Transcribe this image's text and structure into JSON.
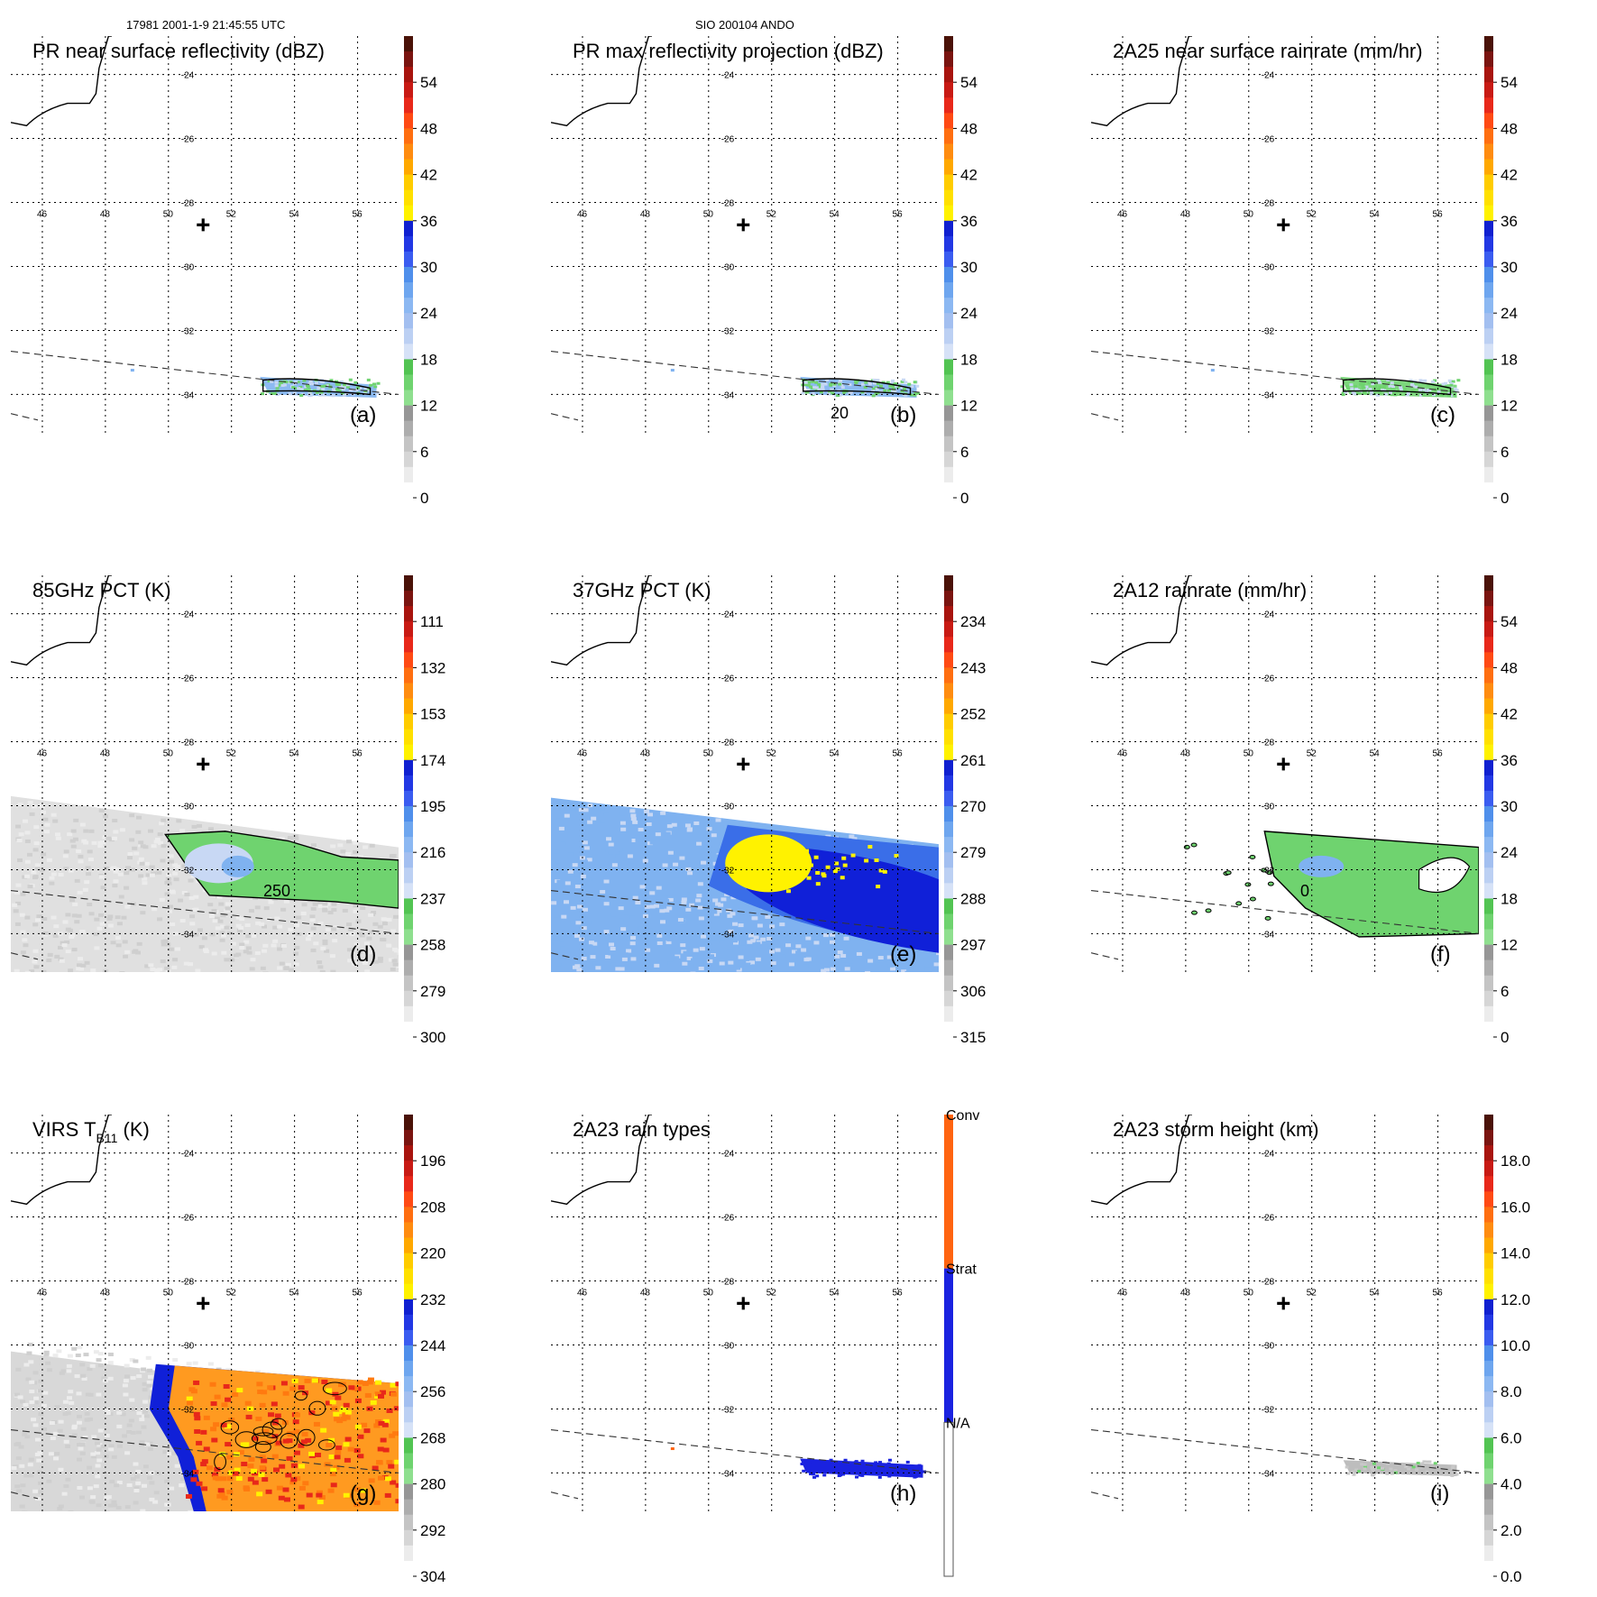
{
  "header": {
    "left": "17981 2001-1-9 21:45:55 UTC",
    "center": "SIO 200104 ANDO"
  },
  "map": {
    "lon_ticks": [
      "46",
      "48",
      "50",
      "52",
      "54",
      "56"
    ],
    "lat_ticks": [
      "-24",
      "-26",
      "-28",
      "-30",
      "-32",
      "-34"
    ],
    "center_marker": "plus-icon"
  },
  "colors": {
    "gray_light": "#f2f2f2",
    "gray_mid": "#bdbdbd",
    "gray_dark": "#8f8f8f",
    "green": "#6fd36f",
    "pale_blue": "#c8d8f4",
    "light_blue": "#7fb2f0",
    "blue": "#3a6ee8",
    "dark_blue": "#1020d8",
    "yellow": "#fff200",
    "orange": "#ff9a20",
    "red": "#e8281a",
    "dark_red": "#a8140e",
    "maroon": "#4a1208",
    "conv": "#ff6410",
    "strat": "#1a22e0",
    "na": "#ffffff"
  },
  "chart_data": [
    {
      "type": "heatmap",
      "panel": "a",
      "title": "PR near surface reflectivity (dBZ)",
      "colorbar": {
        "labels": [
          "54",
          "48",
          "42",
          "36",
          "30",
          "24",
          "18",
          "12",
          "6",
          "0"
        ]
      },
      "contour_labels": [],
      "field": "pr_narrow"
    },
    {
      "type": "heatmap",
      "panel": "b",
      "title": "PR max reflectivity projection (dBZ)",
      "colorbar": {
        "labels": [
          "54",
          "48",
          "42",
          "36",
          "30",
          "24",
          "18",
          "12",
          "6",
          "0"
        ]
      },
      "contour_labels": [
        "20"
      ],
      "field": "pr_narrow"
    },
    {
      "type": "heatmap",
      "panel": "c",
      "title": "2A25 near surface rainrate (mm/hr)",
      "colorbar": {
        "labels": [
          "54",
          "48",
          "42",
          "36",
          "30",
          "24",
          "18",
          "12",
          "6",
          "0"
        ]
      },
      "contour_labels": [],
      "field": "pr_narrow_green"
    },
    {
      "type": "heatmap",
      "panel": "d",
      "title": "85GHz PCT (K)",
      "colorbar": {
        "labels": [
          "111",
          "132",
          "153",
          "174",
          "195",
          "216",
          "237",
          "258",
          "279",
          "300"
        ]
      },
      "contour_labels": [
        "250"
      ],
      "field": "tmi_85"
    },
    {
      "type": "heatmap",
      "panel": "e",
      "title": "37GHz PCT (K)",
      "colorbar": {
        "labels": [
          "234",
          "243",
          "252",
          "261",
          "270",
          "279",
          "288",
          "297",
          "306",
          "315"
        ]
      },
      "contour_labels": [],
      "field": "tmi_37"
    },
    {
      "type": "heatmap",
      "panel": "f",
      "title": "2A12 rainrate (mm/hr)",
      "colorbar": {
        "labels": [
          "54",
          "48",
          "42",
          "36",
          "30",
          "24",
          "18",
          "12",
          "6",
          "0"
        ]
      },
      "contour_labels": [
        "0"
      ],
      "field": "tmi_rain"
    },
    {
      "type": "heatmap",
      "panel": "g",
      "title": "VIRS T",
      "title_sub": "B11",
      "title_suffix": " (K)",
      "colorbar": {
        "labels": [
          "196",
          "208",
          "220",
          "232",
          "244",
          "256",
          "268",
          "280",
          "292",
          "304"
        ]
      },
      "contour_labels": [],
      "field": "virs"
    },
    {
      "type": "heatmap",
      "panel": "h",
      "title": "2A23 rain types",
      "colorbar": {
        "categorical": true,
        "labels": [
          "Conv",
          "Strat",
          "N/A"
        ]
      },
      "contour_labels": [],
      "field": "rain_types"
    },
    {
      "type": "heatmap",
      "panel": "i",
      "title": "2A23 storm height (km)",
      "colorbar": {
        "labels": [
          "18.0",
          "16.0",
          "14.0",
          "12.0",
          "10.0",
          "8.0",
          "6.0",
          "4.0",
          "2.0",
          "0.0"
        ]
      },
      "contour_labels": [],
      "field": "storm_height"
    }
  ]
}
